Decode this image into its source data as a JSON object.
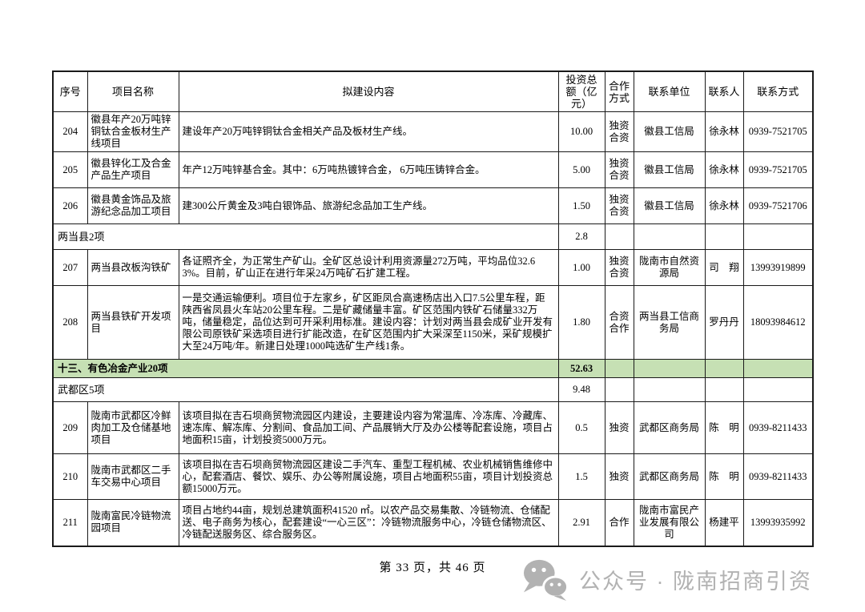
{
  "page": {
    "footer": "第 33 页，共 46 页",
    "watermark_text": "公众号 · 陇南招商引资"
  },
  "colors": {
    "category_row_green": "#c6e0b4",
    "watermark_gray": "#b2b2b2",
    "table_border": "#1a1a1a"
  },
  "table": {
    "columns": [
      "序号",
      "项目名称",
      "拟建设内容",
      "投资总额（亿元）",
      "合作方式",
      "联系单位",
      "联系人",
      "联系方式"
    ],
    "rows": [
      {
        "type": "project",
        "no": "204",
        "name": "徽县年产20万吨锌铜钛合金板材生产线项目",
        "content": "建设年产20万吨锌铜钛合金相关产品及板材生产线。",
        "amount": "10.00",
        "mode": "独资合资",
        "unit": "徽县工信局",
        "person": "徐永林",
        "phone": "0939-7521705"
      },
      {
        "type": "project",
        "no": "205",
        "name": "徽县锌化工及合金产品生产项目",
        "content": "年产12万吨锌基合金。其中：6万吨热镀锌合金， 6万吨压铸锌合金。",
        "amount": "5.00",
        "mode": "独资合资",
        "unit": "徽县工信局",
        "person": "徐永林",
        "phone": "0939-7521705"
      },
      {
        "type": "project",
        "no": "206",
        "name": "徽县黄金饰品及旅游纪念品加工项目",
        "content": "建300公斤黄金及3吨白银饰品、旅游纪念品加工生产线。",
        "amount": "1.50",
        "mode": "独资合资",
        "unit": "徽县工信局",
        "person": "徐永林",
        "phone": "0939-7521706"
      },
      {
        "type": "section",
        "kind": "county",
        "label": "两当县2项",
        "amount": "2.8"
      },
      {
        "type": "project",
        "no": "207",
        "name": "两当县改板沟铁矿",
        "content": "各证照齐全，为正常生产矿山。全矿区总设计利用资源量272万吨，平均品位32.63%。目前，矿山正在进行年采24万吨矿石扩建工程。",
        "amount": "1.00",
        "mode": "独资合资",
        "unit": "陇南市自然资源局",
        "person": "司　翔",
        "phone": "13993919899"
      },
      {
        "type": "project",
        "no": "208",
        "name": "两当县铁矿开发项目",
        "content": "一是交通运输便利。项目位于左家乡，矿区距凤合高速杨店出入口7.5公里车程，距陕西省凤县火车站20公里车程。二是矿藏储量丰富。矿区范围内铁矿石储量332万吨，储量稳定，品位达到可开采利用标准。建设内容：计划对两当县会成矿业开发有限公司原铁矿采选项目进行扩能改造，在矿区范围内扩大采深至1150米，采矿规模扩大至24万吨/年。新建日处理1000吨选矿生产线1条。",
        "amount": "1.80",
        "mode": "合资合作",
        "unit": "两当县工信商务局",
        "person": "罗丹丹",
        "phone": "18093984612"
      },
      {
        "type": "section",
        "kind": "category",
        "label": "十三、有色冶金产业20项",
        "amount": "52.63"
      },
      {
        "type": "section",
        "kind": "county",
        "label": "武都区5项",
        "amount": "9.48"
      },
      {
        "type": "project",
        "no": "209",
        "name": "陇南市武都区冷鲜肉加工及仓储基地项目",
        "content": "该项目拟在吉石坝商贸物流园区内建设，主要建设内容为常温库、冷冻库、冷藏库、速冻库、解冻库、分割间、食品加工间、产品展销大厅及办公楼等配套设施，项目占地面积15亩，计划投资5000万元。",
        "amount": "0.5",
        "mode": "独资",
        "unit": "武都区商务局",
        "person": "陈　明",
        "phone": "0939-8211433"
      },
      {
        "type": "project",
        "no": "210",
        "name": "陇南市武都区二手车交易中心项目",
        "content": "该项目拟在吉石坝商贸物流园区建设二手汽车、重型工程机械、农业机械销售维修中心，配套酒店、餐饮、娱乐、办公等附属设施，项目占地面积55亩，项目计划投资总额15000万元。",
        "amount": "1.5",
        "mode": "独资",
        "unit": "武都区商务局",
        "person": "陈　明",
        "phone": "0939-8211433"
      },
      {
        "type": "project",
        "no": "211",
        "name": "陇南富民冷链物流园项目",
        "content": "项目占地约44亩，规划总建筑面积41520 ㎡。以农产品交易集散、冷链物流、仓储配送、电子商务为核心，配套建设“一心三区”：冷链物流服务中心，冷链仓储物流区、冷链配送服务区、综合服务区。",
        "amount": "2.91",
        "mode": "合作",
        "unit": "陇南市富民产业发展有限公司",
        "person": "杨建平",
        "phone": "13993935992"
      }
    ]
  }
}
